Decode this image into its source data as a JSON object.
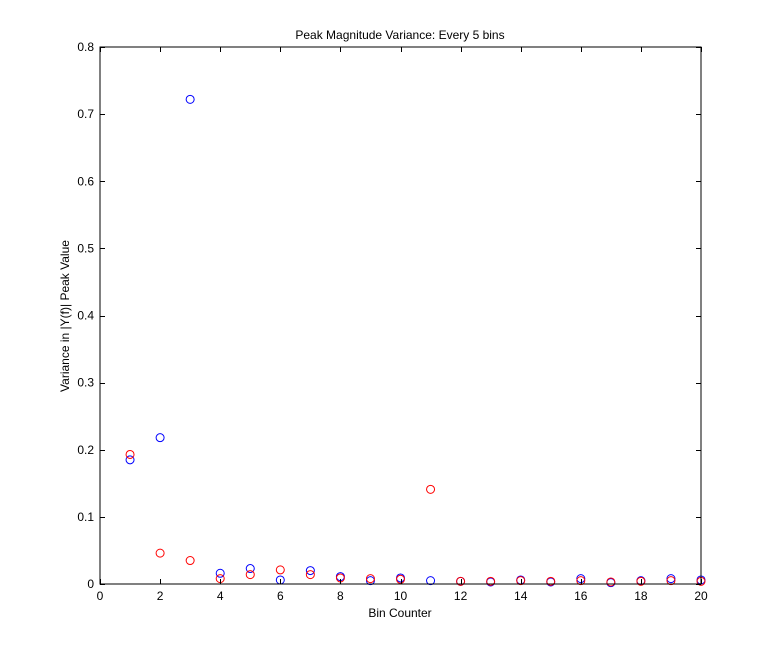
{
  "chart_data": {
    "type": "scatter",
    "title": "Peak Magnitude Variance: Every 5 bins",
    "xlabel": "Bin Counter",
    "ylabel": "Variance in |Y(f)| Peak Value",
    "xlim": [
      0,
      20
    ],
    "ylim": [
      0,
      0.8
    ],
    "xticks": [
      0,
      2,
      4,
      6,
      8,
      10,
      12,
      14,
      16,
      18,
      20
    ],
    "yticks": [
      0,
      0.1,
      0.2,
      0.3,
      0.4,
      0.5,
      0.6,
      0.7,
      0.8
    ],
    "xtick_labels": [
      "0",
      "2",
      "4",
      "6",
      "8",
      "10",
      "12",
      "14",
      "16",
      "18",
      "20"
    ],
    "ytick_labels": [
      "0",
      "0.1",
      "0.2",
      "0.3",
      "0.4",
      "0.5",
      "0.6",
      "0.7",
      "0.8"
    ],
    "grid": false,
    "legend": "none",
    "marker": "circle-open",
    "series": [
      {
        "color": "#0000ff",
        "x": [
          1,
          2,
          3,
          4,
          5,
          6,
          7,
          8,
          9,
          10,
          11,
          12,
          13,
          14,
          15,
          16,
          17,
          18,
          19,
          20
        ],
        "y": [
          0.185,
          0.218,
          0.722,
          0.016,
          0.023,
          0.006,
          0.02,
          0.011,
          0.005,
          0.009,
          0.005,
          0.004,
          0.003,
          0.006,
          0.003,
          0.008,
          0.002,
          0.005,
          0.008,
          0.006
        ]
      },
      {
        "color": "#ff0000",
        "x": [
          1,
          2,
          3,
          4,
          5,
          6,
          7,
          8,
          9,
          10,
          11,
          12,
          13,
          14,
          15,
          16,
          17,
          18,
          19,
          20
        ],
        "y": [
          0.193,
          0.046,
          0.035,
          0.008,
          0.014,
          0.021,
          0.014,
          0.009,
          0.008,
          0.007,
          0.141,
          0.004,
          0.004,
          0.005,
          0.004,
          0.005,
          0.003,
          0.004,
          0.005,
          0.004
        ]
      }
    ]
  }
}
